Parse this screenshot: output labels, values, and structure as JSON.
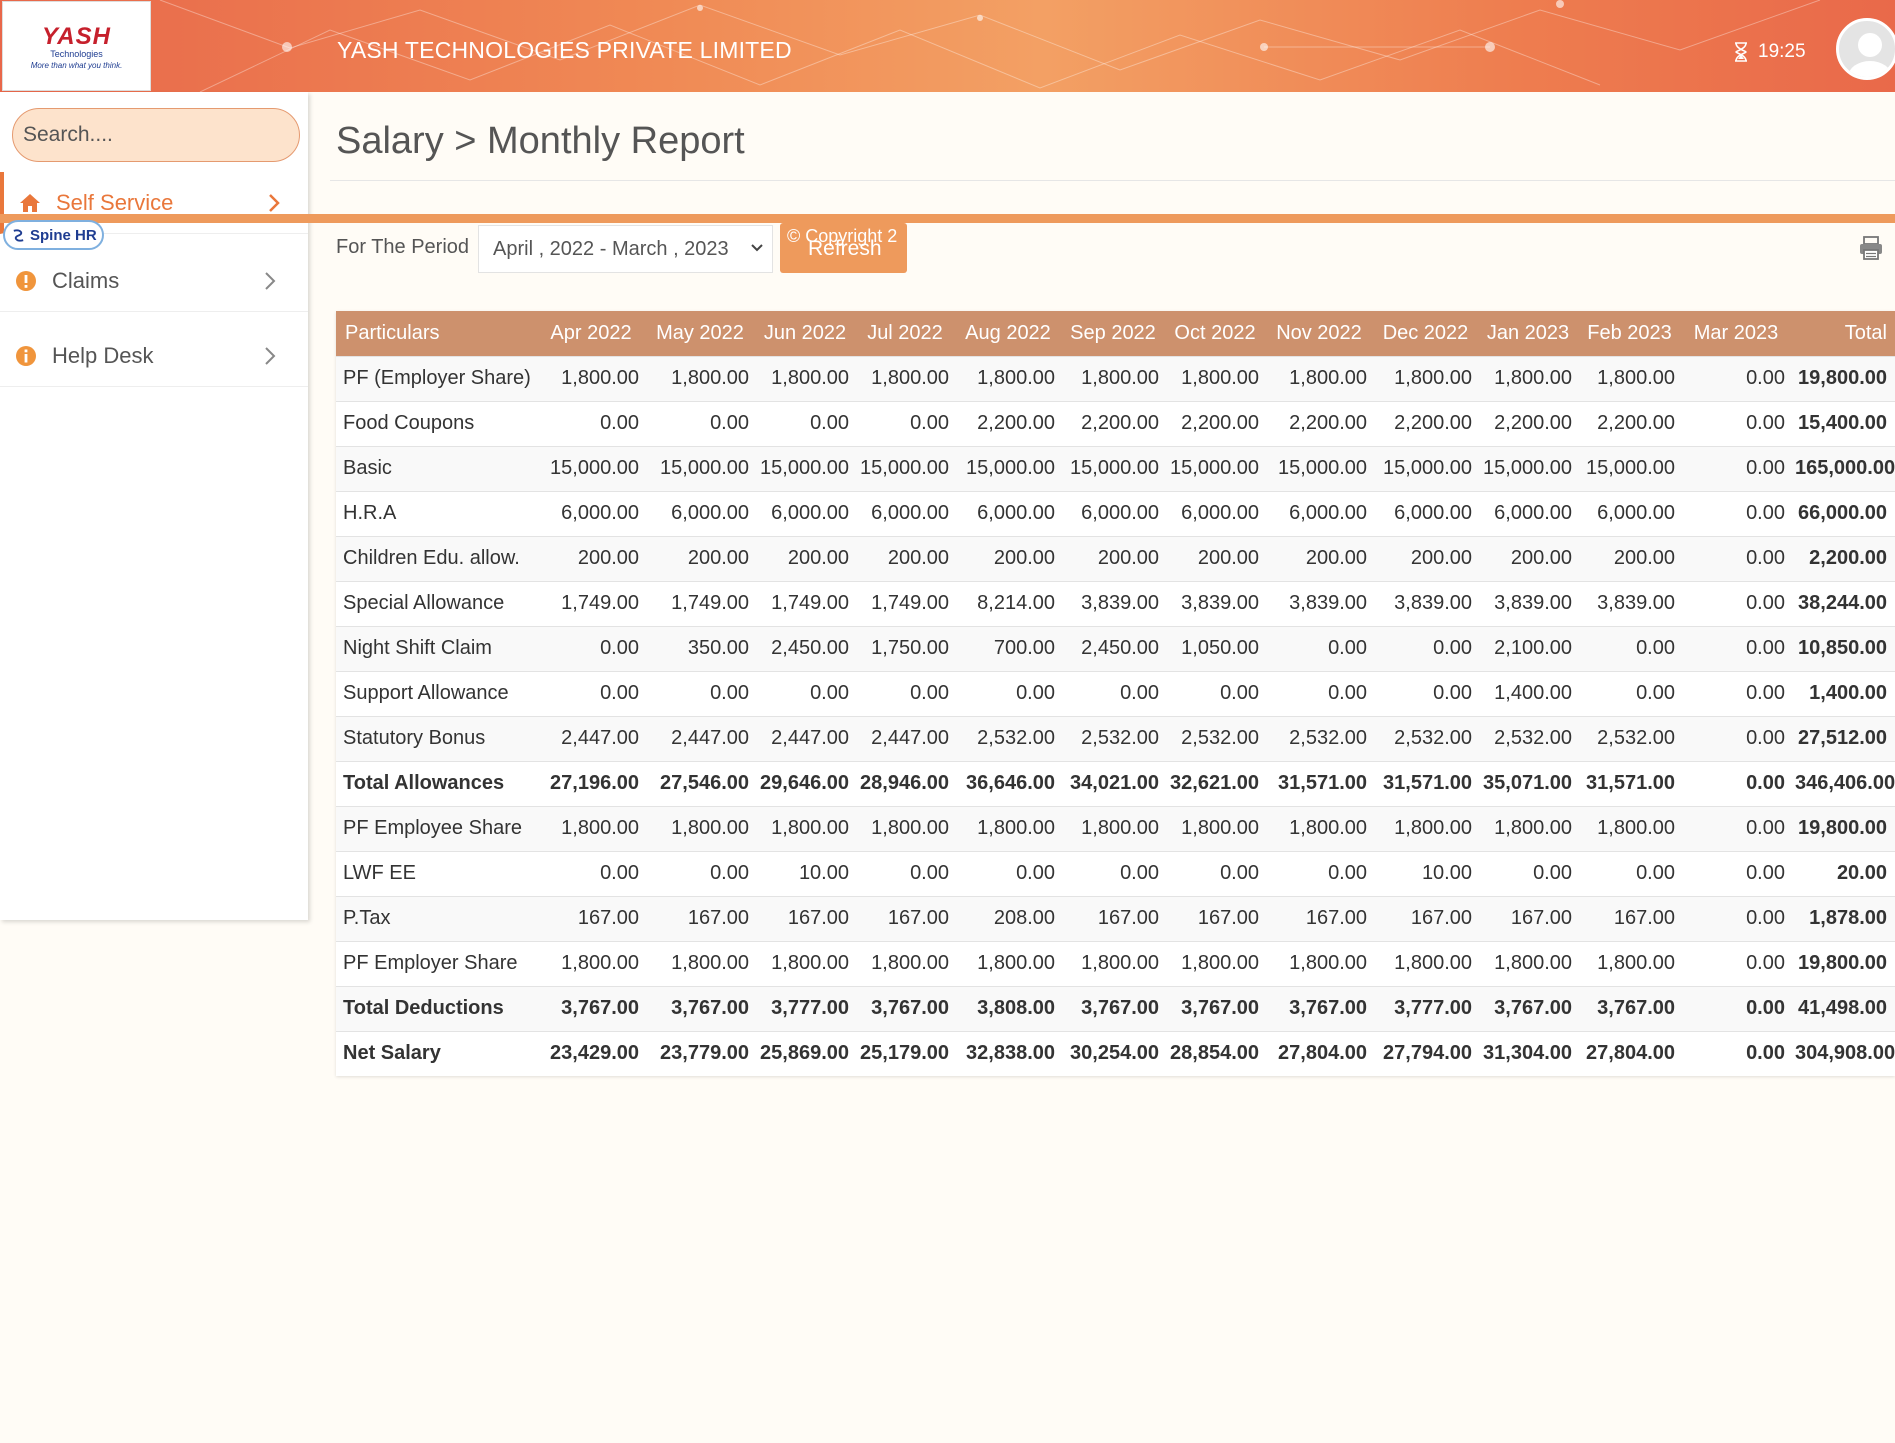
{
  "header": {
    "logo_text": "YASH",
    "logo_sub": "Technologies",
    "logo_tag": "More than what you think.",
    "company": "YASH TECHNOLOGIES PRIVATE LIMITED",
    "time": "19:25"
  },
  "sidebar": {
    "search_placeholder": "Search....",
    "items": [
      {
        "label": "Self Service",
        "icon": "home-icon"
      },
      {
        "label": "Claims",
        "icon": "exclamation-circle-icon"
      },
      {
        "label": "Help Desk",
        "icon": "info-circle-icon"
      }
    ],
    "badge": "Spine HR"
  },
  "main": {
    "breadcrumb": "Salary > Monthly Report",
    "period_label": "For The Period",
    "period_value": "April , 2022 - March , 2023",
    "refresh_label": "Refresh",
    "copyright": "© Copyright 2"
  },
  "table": {
    "headers": [
      "Particulars",
      "Apr 2022",
      "May 2022",
      "Jun 2022",
      "Jul 2022",
      "Aug 2022",
      "Sep 2022",
      "Oct 2022",
      "Nov 2022",
      "Dec 2022",
      "Jan 2023",
      "Feb 2023",
      "Mar 2023",
      "Total"
    ],
    "rows": [
      {
        "label": "PF (Employer Share)",
        "bold": false,
        "values": [
          "1,800.00",
          "1,800.00",
          "1,800.00",
          "1,800.00",
          "1,800.00",
          "1,800.00",
          "1,800.00",
          "1,800.00",
          "1,800.00",
          "1,800.00",
          "1,800.00",
          "0.00",
          "19,800.00"
        ]
      },
      {
        "label": "Food Coupons",
        "bold": false,
        "values": [
          "0.00",
          "0.00",
          "0.00",
          "0.00",
          "2,200.00",
          "2,200.00",
          "2,200.00",
          "2,200.00",
          "2,200.00",
          "2,200.00",
          "2,200.00",
          "0.00",
          "15,400.00"
        ]
      },
      {
        "label": "Basic",
        "bold": false,
        "values": [
          "15,000.00",
          "15,000.00",
          "15,000.00",
          "15,000.00",
          "15,000.00",
          "15,000.00",
          "15,000.00",
          "15,000.00",
          "15,000.00",
          "15,000.00",
          "15,000.00",
          "0.00",
          "165,000.00"
        ]
      },
      {
        "label": "H.R.A",
        "bold": false,
        "values": [
          "6,000.00",
          "6,000.00",
          "6,000.00",
          "6,000.00",
          "6,000.00",
          "6,000.00",
          "6,000.00",
          "6,000.00",
          "6,000.00",
          "6,000.00",
          "6,000.00",
          "0.00",
          "66,000.00"
        ]
      },
      {
        "label": "Children Edu. allow.",
        "bold": false,
        "values": [
          "200.00",
          "200.00",
          "200.00",
          "200.00",
          "200.00",
          "200.00",
          "200.00",
          "200.00",
          "200.00",
          "200.00",
          "200.00",
          "0.00",
          "2,200.00"
        ]
      },
      {
        "label": "Special Allowance",
        "bold": false,
        "values": [
          "1,749.00",
          "1,749.00",
          "1,749.00",
          "1,749.00",
          "8,214.00",
          "3,839.00",
          "3,839.00",
          "3,839.00",
          "3,839.00",
          "3,839.00",
          "3,839.00",
          "0.00",
          "38,244.00"
        ]
      },
      {
        "label": "Night Shift Claim",
        "bold": false,
        "values": [
          "0.00",
          "350.00",
          "2,450.00",
          "1,750.00",
          "700.00",
          "2,450.00",
          "1,050.00",
          "0.00",
          "0.00",
          "2,100.00",
          "0.00",
          "0.00",
          "10,850.00"
        ]
      },
      {
        "label": "Support Allowance",
        "bold": false,
        "values": [
          "0.00",
          "0.00",
          "0.00",
          "0.00",
          "0.00",
          "0.00",
          "0.00",
          "0.00",
          "0.00",
          "1,400.00",
          "0.00",
          "0.00",
          "1,400.00"
        ]
      },
      {
        "label": "Statutory Bonus",
        "bold": false,
        "values": [
          "2,447.00",
          "2,447.00",
          "2,447.00",
          "2,447.00",
          "2,532.00",
          "2,532.00",
          "2,532.00",
          "2,532.00",
          "2,532.00",
          "2,532.00",
          "2,532.00",
          "0.00",
          "27,512.00"
        ]
      },
      {
        "label": "Total Allowances",
        "bold": true,
        "values": [
          "27,196.00",
          "27,546.00",
          "29,646.00",
          "28,946.00",
          "36,646.00",
          "34,021.00",
          "32,621.00",
          "31,571.00",
          "31,571.00",
          "35,071.00",
          "31,571.00",
          "0.00",
          "346,406.00"
        ]
      },
      {
        "label": "PF Employee Share",
        "bold": false,
        "values": [
          "1,800.00",
          "1,800.00",
          "1,800.00",
          "1,800.00",
          "1,800.00",
          "1,800.00",
          "1,800.00",
          "1,800.00",
          "1,800.00",
          "1,800.00",
          "1,800.00",
          "0.00",
          "19,800.00"
        ]
      },
      {
        "label": "LWF EE",
        "bold": false,
        "values": [
          "0.00",
          "0.00",
          "10.00",
          "0.00",
          "0.00",
          "0.00",
          "0.00",
          "0.00",
          "10.00",
          "0.00",
          "0.00",
          "0.00",
          "20.00"
        ]
      },
      {
        "label": "P.Tax",
        "bold": false,
        "values": [
          "167.00",
          "167.00",
          "167.00",
          "167.00",
          "208.00",
          "167.00",
          "167.00",
          "167.00",
          "167.00",
          "167.00",
          "167.00",
          "0.00",
          "1,878.00"
        ]
      },
      {
        "label": "PF Employer Share",
        "bold": false,
        "values": [
          "1,800.00",
          "1,800.00",
          "1,800.00",
          "1,800.00",
          "1,800.00",
          "1,800.00",
          "1,800.00",
          "1,800.00",
          "1,800.00",
          "1,800.00",
          "1,800.00",
          "0.00",
          "19,800.00"
        ]
      },
      {
        "label": "Total Deductions",
        "bold": true,
        "values": [
          "3,767.00",
          "3,767.00",
          "3,777.00",
          "3,767.00",
          "3,808.00",
          "3,767.00",
          "3,767.00",
          "3,767.00",
          "3,777.00",
          "3,767.00",
          "3,767.00",
          "0.00",
          "41,498.00"
        ]
      },
      {
        "label": "Net Salary",
        "bold": true,
        "values": [
          "23,429.00",
          "23,779.00",
          "25,869.00",
          "25,179.00",
          "32,838.00",
          "30,254.00",
          "28,854.00",
          "27,804.00",
          "27,794.00",
          "31,304.00",
          "27,804.00",
          "0.00",
          "304,908.00"
        ]
      }
    ]
  },
  "colors": {
    "accent": "#ee9a5c",
    "table_header": "#cd916d",
    "active_nav": "#e9773b"
  }
}
